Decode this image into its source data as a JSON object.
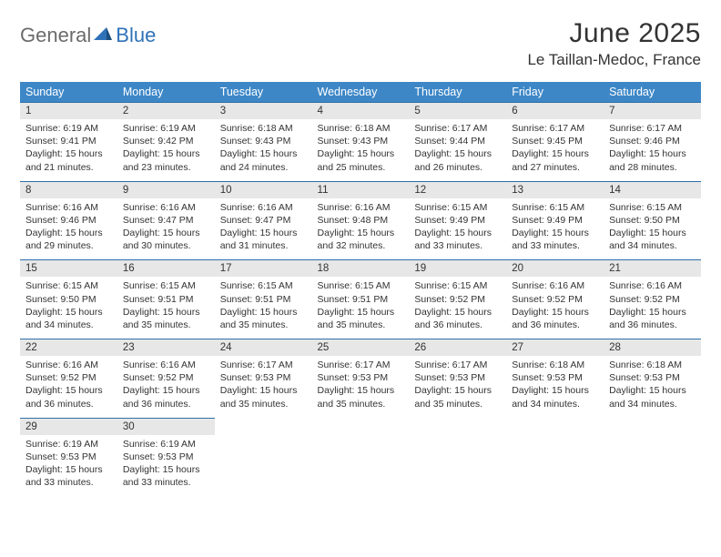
{
  "brand": {
    "part1": "General",
    "part2": "Blue"
  },
  "title": "June 2025",
  "location": "Le Taillan-Medoc, France",
  "colors": {
    "header_bg": "#3d87c7",
    "border": "#2f6fa8",
    "daynum_bg": "#e7e7e7",
    "text": "#333333",
    "logo_gray": "#6b6b6b",
    "logo_blue": "#2f72b8"
  },
  "dow": [
    "Sunday",
    "Monday",
    "Tuesday",
    "Wednesday",
    "Thursday",
    "Friday",
    "Saturday"
  ],
  "weeks": [
    [
      {
        "n": "1",
        "sr": "6:19 AM",
        "ss": "9:41 PM",
        "dl": "15 hours and 21 minutes."
      },
      {
        "n": "2",
        "sr": "6:19 AM",
        "ss": "9:42 PM",
        "dl": "15 hours and 23 minutes."
      },
      {
        "n": "3",
        "sr": "6:18 AM",
        "ss": "9:43 PM",
        "dl": "15 hours and 24 minutes."
      },
      {
        "n": "4",
        "sr": "6:18 AM",
        "ss": "9:43 PM",
        "dl": "15 hours and 25 minutes."
      },
      {
        "n": "5",
        "sr": "6:17 AM",
        "ss": "9:44 PM",
        "dl": "15 hours and 26 minutes."
      },
      {
        "n": "6",
        "sr": "6:17 AM",
        "ss": "9:45 PM",
        "dl": "15 hours and 27 minutes."
      },
      {
        "n": "7",
        "sr": "6:17 AM",
        "ss": "9:46 PM",
        "dl": "15 hours and 28 minutes."
      }
    ],
    [
      {
        "n": "8",
        "sr": "6:16 AM",
        "ss": "9:46 PM",
        "dl": "15 hours and 29 minutes."
      },
      {
        "n": "9",
        "sr": "6:16 AM",
        "ss": "9:47 PM",
        "dl": "15 hours and 30 minutes."
      },
      {
        "n": "10",
        "sr": "6:16 AM",
        "ss": "9:47 PM",
        "dl": "15 hours and 31 minutes."
      },
      {
        "n": "11",
        "sr": "6:16 AM",
        "ss": "9:48 PM",
        "dl": "15 hours and 32 minutes."
      },
      {
        "n": "12",
        "sr": "6:15 AM",
        "ss": "9:49 PM",
        "dl": "15 hours and 33 minutes."
      },
      {
        "n": "13",
        "sr": "6:15 AM",
        "ss": "9:49 PM",
        "dl": "15 hours and 33 minutes."
      },
      {
        "n": "14",
        "sr": "6:15 AM",
        "ss": "9:50 PM",
        "dl": "15 hours and 34 minutes."
      }
    ],
    [
      {
        "n": "15",
        "sr": "6:15 AM",
        "ss": "9:50 PM",
        "dl": "15 hours and 34 minutes."
      },
      {
        "n": "16",
        "sr": "6:15 AM",
        "ss": "9:51 PM",
        "dl": "15 hours and 35 minutes."
      },
      {
        "n": "17",
        "sr": "6:15 AM",
        "ss": "9:51 PM",
        "dl": "15 hours and 35 minutes."
      },
      {
        "n": "18",
        "sr": "6:15 AM",
        "ss": "9:51 PM",
        "dl": "15 hours and 35 minutes."
      },
      {
        "n": "19",
        "sr": "6:15 AM",
        "ss": "9:52 PM",
        "dl": "15 hours and 36 minutes."
      },
      {
        "n": "20",
        "sr": "6:16 AM",
        "ss": "9:52 PM",
        "dl": "15 hours and 36 minutes."
      },
      {
        "n": "21",
        "sr": "6:16 AM",
        "ss": "9:52 PM",
        "dl": "15 hours and 36 minutes."
      }
    ],
    [
      {
        "n": "22",
        "sr": "6:16 AM",
        "ss": "9:52 PM",
        "dl": "15 hours and 36 minutes."
      },
      {
        "n": "23",
        "sr": "6:16 AM",
        "ss": "9:52 PM",
        "dl": "15 hours and 36 minutes."
      },
      {
        "n": "24",
        "sr": "6:17 AM",
        "ss": "9:53 PM",
        "dl": "15 hours and 35 minutes."
      },
      {
        "n": "25",
        "sr": "6:17 AM",
        "ss": "9:53 PM",
        "dl": "15 hours and 35 minutes."
      },
      {
        "n": "26",
        "sr": "6:17 AM",
        "ss": "9:53 PM",
        "dl": "15 hours and 35 minutes."
      },
      {
        "n": "27",
        "sr": "6:18 AM",
        "ss": "9:53 PM",
        "dl": "15 hours and 34 minutes."
      },
      {
        "n": "28",
        "sr": "6:18 AM",
        "ss": "9:53 PM",
        "dl": "15 hours and 34 minutes."
      }
    ],
    [
      {
        "n": "29",
        "sr": "6:19 AM",
        "ss": "9:53 PM",
        "dl": "15 hours and 33 minutes."
      },
      {
        "n": "30",
        "sr": "6:19 AM",
        "ss": "9:53 PM",
        "dl": "15 hours and 33 minutes."
      },
      null,
      null,
      null,
      null,
      null
    ]
  ],
  "labels": {
    "sunrise": "Sunrise:",
    "sunset": "Sunset:",
    "daylight": "Daylight:"
  }
}
